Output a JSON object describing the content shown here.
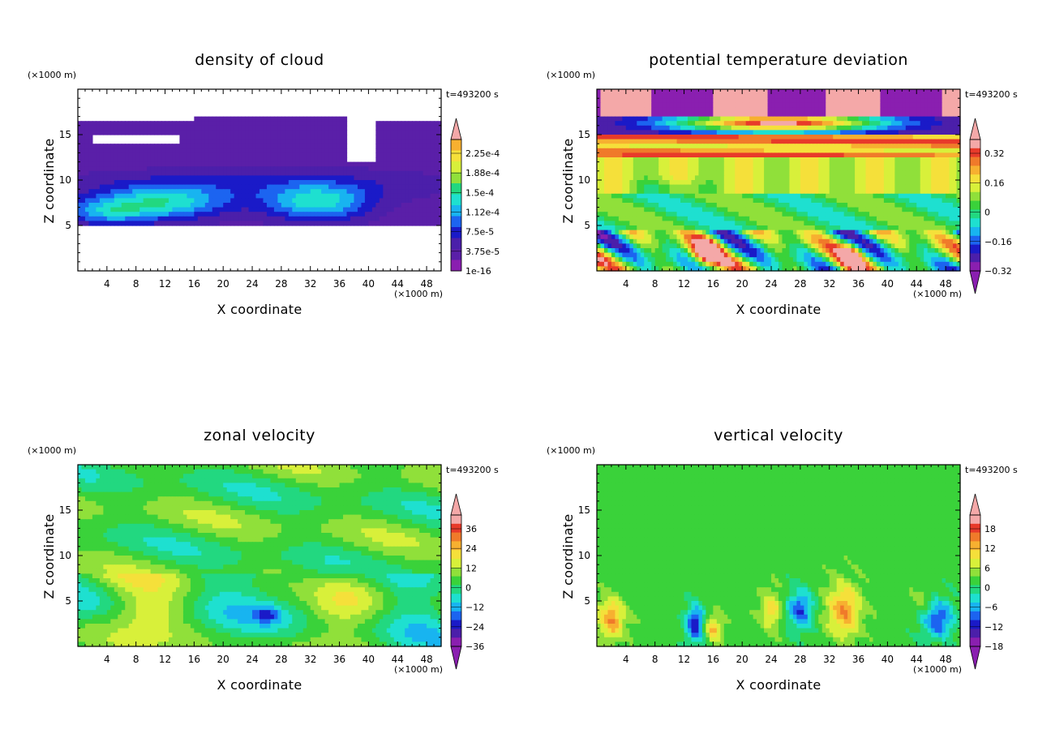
{
  "chart_data": [
    {
      "type": "heatmap",
      "title": "density of cloud",
      "xlabel": "X coordinate",
      "ylabel": "Z coordinate",
      "x_unit": "(×1000 m)",
      "y_unit": "(×1000 m)",
      "time_label": "t=493200 s",
      "xlim": [
        0,
        50
      ],
      "ylim": [
        0,
        20
      ],
      "x_ticks": [
        4,
        8,
        12,
        16,
        20,
        24,
        28,
        32,
        36,
        40,
        44,
        48
      ],
      "y_ticks": [
        5,
        10,
        15
      ],
      "colorbar_labels": [
        "2.25e-4",
        "1.88e-4",
        "1.5e-4",
        "1.12e-4",
        "7.5e-5",
        "3.75e-5",
        "1e-16"
      ],
      "colorbar_arrow_top": true,
      "colorbar_arrow_bottom": false
    },
    {
      "type": "heatmap",
      "title": "potential temperature deviation",
      "xlabel": "X coordinate",
      "ylabel": "Z coordinate",
      "x_unit": "(×1000 m)",
      "y_unit": "(×1000 m)",
      "time_label": "t=493200 s",
      "xlim": [
        0,
        50
      ],
      "ylim": [
        0,
        20
      ],
      "x_ticks": [
        4,
        8,
        12,
        16,
        20,
        24,
        28,
        32,
        36,
        40,
        44,
        48
      ],
      "y_ticks": [
        5,
        10,
        15
      ],
      "colorbar_labels": [
        "0.32",
        "0.16",
        "0",
        "−0.16",
        "−0.32"
      ],
      "colorbar_arrow_top": true,
      "colorbar_arrow_bottom": true
    },
    {
      "type": "heatmap",
      "title": "zonal velocity",
      "xlabel": "X coordinate",
      "ylabel": "Z coordinate",
      "x_unit": "(×1000 m)",
      "y_unit": "(×1000 m)",
      "time_label": "t=493200 s",
      "xlim": [
        0,
        50
      ],
      "ylim": [
        0,
        20
      ],
      "x_ticks": [
        4,
        8,
        12,
        16,
        20,
        24,
        28,
        32,
        36,
        40,
        44,
        48
      ],
      "y_ticks": [
        5,
        10,
        15
      ],
      "colorbar_labels": [
        "36",
        "24",
        "12",
        "0",
        "−12",
        "−24",
        "−36"
      ],
      "colorbar_arrow_top": true,
      "colorbar_arrow_bottom": true
    },
    {
      "type": "heatmap",
      "title": "vertical velocity",
      "xlabel": "X coordinate",
      "ylabel": "Z coordinate",
      "x_unit": "(×1000 m)",
      "y_unit": "(×1000 m)",
      "time_label": "t=493200 s",
      "xlim": [
        0,
        50
      ],
      "ylim": [
        0,
        20
      ],
      "x_ticks": [
        4,
        8,
        12,
        16,
        20,
        24,
        28,
        32,
        36,
        40,
        44,
        48
      ],
      "y_ticks": [
        5,
        10,
        15
      ],
      "colorbar_labels": [
        "18",
        "12",
        "6",
        "0",
        "−6",
        "−12",
        "−18"
      ],
      "colorbar_arrow_top": true,
      "colorbar_arrow_bottom": true
    }
  ],
  "colors": {
    "palette": [
      "#8a1fb0",
      "#4b1faa",
      "#1a1ac8",
      "#1c64f0",
      "#18b4f0",
      "#1ee0d0",
      "#22d880",
      "#3ad23a",
      "#90e03a",
      "#d8f03a",
      "#f5e03a",
      "#f7b030",
      "#f07a2a",
      "#e83a2a",
      "#f4a8a8"
    ]
  }
}
